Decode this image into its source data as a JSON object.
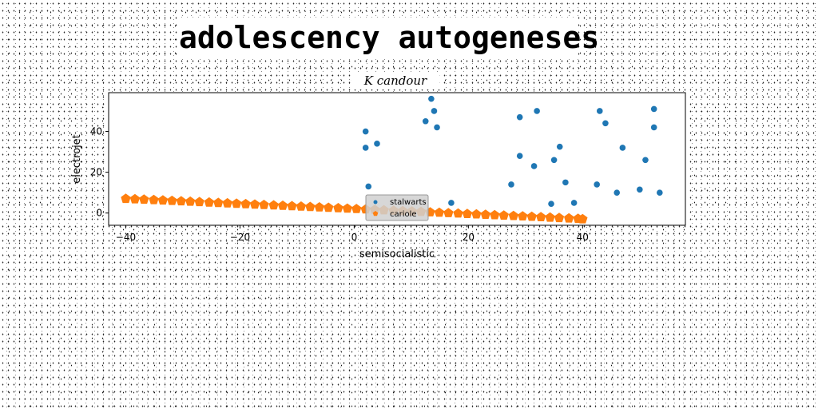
{
  "header": {
    "suptitle": "adolescency autogeneses"
  },
  "chart_data": {
    "type": "scatter",
    "title": "K candour",
    "xlabel": "semisocialistic",
    "ylabel": "electrojet",
    "xlim": [
      -43,
      58
    ],
    "ylim": [
      -6,
      59
    ],
    "xticks": [
      -40,
      -20,
      0,
      20,
      40
    ],
    "yticks": [
      0,
      20,
      40
    ],
    "xtick_labels": [
      "−40",
      "−20",
      "0",
      "20",
      "40"
    ],
    "ytick_labels": [
      "0",
      "20",
      "40"
    ],
    "grid": false,
    "legend_position": "lower center",
    "series": [
      {
        "name": "stalwarts",
        "color": "#1f77b4",
        "marker": "circle",
        "x": [
          2,
          2,
          2.5,
          4,
          12.5,
          13.5,
          14,
          14.5,
          17,
          27.5,
          29,
          29,
          31.5,
          32,
          34.5,
          35,
          36,
          37,
          38.5,
          42.5,
          43,
          44,
          46,
          47,
          50,
          51,
          52.5,
          52.5,
          53.5
        ],
        "y": [
          40,
          32,
          13,
          34,
          45,
          56,
          50,
          42,
          5,
          14,
          47,
          28,
          23,
          50,
          4.5,
          26,
          32.5,
          15,
          5,
          14,
          50,
          44,
          10,
          32,
          11.5,
          26,
          51,
          42,
          10
        ]
      },
      {
        "name": "cariole",
        "color": "#ff7f0e",
        "marker": "pentagon",
        "x": [
          -40,
          -38.4,
          -36.8,
          -35.1,
          -33.5,
          -31.9,
          -30.3,
          -28.7,
          -27.1,
          -25.4,
          -23.8,
          -22.2,
          -20.6,
          -19,
          -17.4,
          -15.8,
          -14.1,
          -12.5,
          -10.9,
          -9.3,
          -7.7,
          -6.1,
          -4.5,
          -2.8,
          -1.2,
          0.4,
          2,
          3.6,
          5.2,
          6.9,
          8.5,
          10.1,
          11.7,
          13.3,
          14.9,
          16.5,
          18.2,
          19.8,
          21.4,
          23,
          24.6,
          26.2,
          27.9,
          29.5,
          31.1,
          32.7,
          34.3,
          35.9,
          37.6,
          39.2,
          40
        ],
        "y": [
          7,
          6.8,
          6.6,
          6.4,
          6.2,
          6,
          5.8,
          5.6,
          5.4,
          5.2,
          5,
          4.8,
          4.6,
          4.4,
          4.2,
          4,
          3.8,
          3.6,
          3.4,
          3.2,
          3,
          2.8,
          2.6,
          2.4,
          2.2,
          2,
          1.8,
          1.6,
          1.4,
          1.2,
          1,
          0.8,
          0.6,
          0.4,
          0.2,
          0,
          -0.2,
          -0.4,
          -0.6,
          -0.8,
          -1,
          -1.2,
          -1.4,
          -1.6,
          -1.8,
          -2,
          -2.2,
          -2.4,
          -2.6,
          -2.8,
          -3
        ]
      }
    ]
  }
}
